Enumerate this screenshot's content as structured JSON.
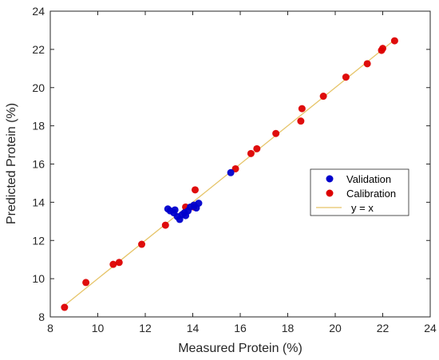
{
  "chart_data": {
    "type": "scatter",
    "title": "",
    "xlabel": "Measured Protein (%)",
    "ylabel": "Predicted Protein (%)",
    "xlim": [
      8,
      24
    ],
    "ylim": [
      8,
      24
    ],
    "xticks": [
      8,
      10,
      12,
      14,
      16,
      18,
      20,
      22,
      24
    ],
    "yticks": [
      8,
      10,
      12,
      14,
      16,
      18,
      20,
      22,
      24
    ],
    "grid": false,
    "legend_position": "right",
    "series": [
      {
        "name": "Validation",
        "color": "#0000cc",
        "marker": "circle",
        "points": [
          [
            12.95,
            13.65
          ],
          [
            13.05,
            13.55
          ],
          [
            13.2,
            13.45
          ],
          [
            13.25,
            13.6
          ],
          [
            13.35,
            13.25
          ],
          [
            13.45,
            13.1
          ],
          [
            13.55,
            13.35
          ],
          [
            13.65,
            13.45
          ],
          [
            13.7,
            13.3
          ],
          [
            13.8,
            13.55
          ],
          [
            13.9,
            13.75
          ],
          [
            14.05,
            13.85
          ],
          [
            14.15,
            13.7
          ],
          [
            14.25,
            13.95
          ],
          [
            15.6,
            15.55
          ]
        ]
      },
      {
        "name": "Calibration",
        "color": "#dd0000",
        "marker": "circle",
        "points": [
          [
            8.6,
            8.5
          ],
          [
            9.5,
            9.8
          ],
          [
            10.65,
            10.75
          ],
          [
            10.9,
            10.85
          ],
          [
            11.85,
            11.8
          ],
          [
            12.85,
            12.8
          ],
          [
            13.7,
            13.75
          ],
          [
            14.05,
            13.75
          ],
          [
            14.1,
            14.65
          ],
          [
            15.8,
            15.75
          ],
          [
            16.45,
            16.55
          ],
          [
            16.7,
            16.8
          ],
          [
            17.5,
            17.6
          ],
          [
            18.55,
            18.25
          ],
          [
            18.6,
            18.9
          ],
          [
            19.5,
            19.55
          ],
          [
            20.45,
            20.55
          ],
          [
            21.35,
            21.25
          ],
          [
            21.95,
            21.95
          ],
          [
            22.0,
            22.05
          ],
          [
            22.5,
            22.45
          ]
        ]
      },
      {
        "name": "y = x",
        "color": "#e6c468",
        "type": "line",
        "points": [
          [
            8.6,
            8.6
          ],
          [
            22.5,
            22.5
          ]
        ]
      }
    ]
  }
}
